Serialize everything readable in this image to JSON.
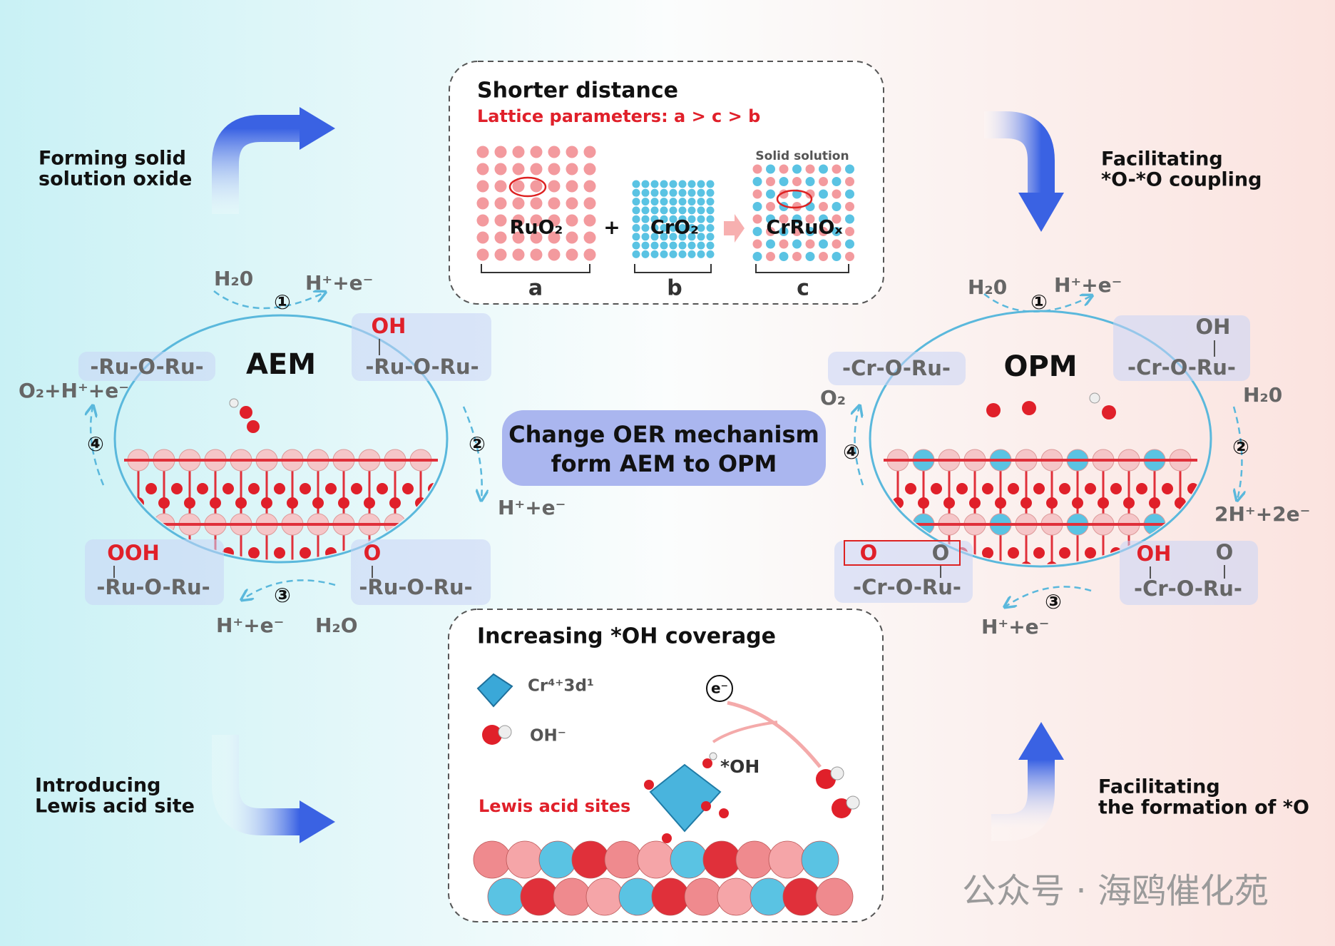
{
  "top_panel": {
    "title": "Shorter distance",
    "subtitle": "Lattice parameters: a > c > b",
    "solid_solution": "Solid solution",
    "ruo2": "RuO₂",
    "plus": "+",
    "cro2": "CrO₂",
    "cruox": "CrRuOₓ",
    "labels": [
      "a",
      "b",
      "c"
    ]
  },
  "bottom_panel": {
    "title": "Increasing *OH coverage",
    "cr_legend": "Cr⁴⁺3d¹",
    "oh_legend": "OH⁻",
    "electron": "e⁻",
    "oh_site": "*OH",
    "lewis": "Lewis acid sites"
  },
  "side_notes": {
    "top_left": [
      "Forming solid",
      "solution oxide"
    ],
    "top_right": [
      "Facilitating",
      "*O-*O coupling"
    ],
    "bottom_left": [
      "Introducing",
      "Lewis acid site"
    ],
    "bottom_right": [
      "Facilitating",
      "the formation of *O"
    ]
  },
  "center": [
    "Change OER mechanism",
    "form AEM to OPM"
  ],
  "aem": {
    "title": "AEM",
    "steps": [
      "①",
      "②",
      "③",
      "④"
    ],
    "in_1": "H₂0",
    "out_1": "H⁺+e⁻",
    "out_2": "H⁺+e⁻",
    "out_3": "H⁺+e⁻",
    "in_3": "H₂O",
    "out_4": "O₂+H⁺+e⁻",
    "sites": [
      {
        "chain": "-Ru-O-Ru-"
      },
      {
        "adsorbate": "OH",
        "chain": "-Ru-O-Ru-"
      },
      {
        "adsorbate": "OOH",
        "chain": "-Ru-O-Ru-"
      },
      {
        "adsorbate": "O",
        "chain": "-Ru-O-Ru-"
      }
    ]
  },
  "opm": {
    "title": "OPM",
    "steps": [
      "①",
      "②",
      "③",
      "④"
    ],
    "in_1": "H₂0",
    "out_1": "H⁺+e⁻",
    "in_2": "H₂0",
    "out_2": "2H⁺+2e⁻",
    "out_3": "H⁺+e⁻",
    "out_4": "O₂",
    "sites": [
      {
        "chain": "-Cr-O-Ru-"
      },
      {
        "adsorbate": "OH",
        "chain": "-Cr-O-Ru-"
      },
      {
        "adsorbates": [
          "O",
          "O"
        ],
        "chain": "-Cr-O-Ru-"
      },
      {
        "adsorbates": [
          "OH",
          "O"
        ],
        "chain": "-Cr-O-Ru-"
      }
    ]
  },
  "watermark": "公众号 · 海鸥催化苑"
}
